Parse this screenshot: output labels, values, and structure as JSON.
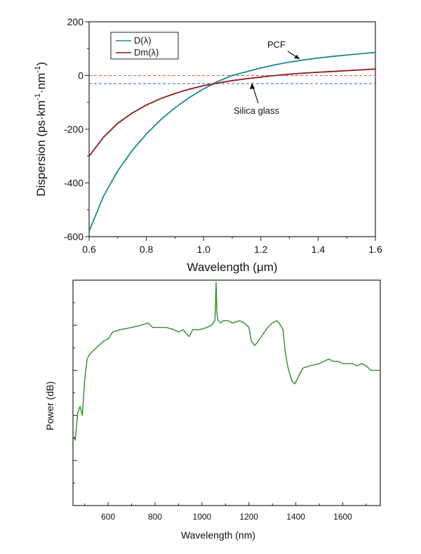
{
  "chart_data": [
    {
      "type": "line",
      "title": "",
      "xlabel": "Wavelength (μm)",
      "ylabel": "Dispersion (ps·km⁻¹·nm⁻¹)",
      "xlim": [
        0.6,
        1.6
      ],
      "ylim": [
        -600,
        200
      ],
      "xticks": [
        0.6,
        0.8,
        1.0,
        1.2,
        1.4,
        1.6
      ],
      "xtick_labels": [
        "0.6",
        "0.8",
        "1.0",
        "1.2",
        "1.4",
        "1.6"
      ],
      "yticks": [
        -600,
        -400,
        -200,
        0,
        200
      ],
      "ytick_labels": [
        "-600",
        "-400",
        "-200",
        "0",
        "200"
      ],
      "grid": false,
      "legend_placement": "top-left",
      "series": [
        {
          "name": "D(λ)",
          "color": "#1a8a8a",
          "x": [
            0.6,
            0.65,
            0.7,
            0.75,
            0.8,
            0.85,
            0.9,
            0.95,
            1.0,
            1.05,
            1.1,
            1.15,
            1.2,
            1.25,
            1.3,
            1.35,
            1.4,
            1.45,
            1.5,
            1.55,
            1.6
          ],
          "y": [
            -580,
            -450,
            -355,
            -280,
            -218,
            -165,
            -120,
            -82,
            -50,
            -22,
            0,
            14,
            28,
            40,
            50,
            58,
            65,
            71,
            76,
            81,
            86
          ]
        },
        {
          "name": "Dm(λ)",
          "color": "#8b1a1a",
          "x": [
            0.6,
            0.65,
            0.7,
            0.75,
            0.8,
            0.85,
            0.9,
            0.95,
            1.0,
            1.05,
            1.1,
            1.15,
            1.2,
            1.25,
            1.3,
            1.35,
            1.4,
            1.45,
            1.5,
            1.55,
            1.6
          ],
          "y": [
            -300,
            -230,
            -178,
            -140,
            -110,
            -86,
            -67,
            -51,
            -38,
            -28,
            -19,
            -12,
            -6,
            0,
            5,
            9,
            12,
            15,
            18,
            21,
            24
          ]
        }
      ],
      "reference_lines": [
        {
          "y": 0,
          "color": "#e05050",
          "style": "dashed"
        },
        {
          "y": -30,
          "color": "#3a4fd0",
          "style": "dashed"
        }
      ],
      "annotations": [
        {
          "text": "PCF",
          "x": 1.28,
          "y": 70,
          "arrow_to": [
            1.36,
            58
          ]
        },
        {
          "text": "Silica glass",
          "x": 1.18,
          "y": -105,
          "arrow_to": [
            1.15,
            -12
          ]
        }
      ]
    },
    {
      "type": "line",
      "title": "",
      "xlabel": "Wavelength (nm)",
      "ylabel": "Power (dB)",
      "xlim": [
        450,
        1760
      ],
      "ylim": [
        0,
        10
      ],
      "xticks": [
        600,
        800,
        1000,
        1200,
        1400,
        1600
      ],
      "xtick_labels": [
        "600",
        "800",
        "1000",
        "1200",
        "1400",
        "1600"
      ],
      "yticks": [
        2,
        4,
        6,
        8
      ],
      "ytick_labels": [],
      "grid": false,
      "series": [
        {
          "color": "#2e8b2e",
          "x": [
            450,
            460,
            470,
            480,
            490,
            500,
            510,
            520,
            540,
            560,
            580,
            600,
            620,
            650,
            700,
            740,
            770,
            790,
            820,
            850,
            880,
            900,
            920,
            935,
            945,
            960,
            990,
            1020,
            1040,
            1055,
            1060,
            1063,
            1066,
            1070,
            1080,
            1090,
            1110,
            1130,
            1160,
            1180,
            1200,
            1210,
            1225,
            1240,
            1260,
            1280,
            1300,
            1320,
            1335,
            1345,
            1355,
            1365,
            1375,
            1385,
            1395,
            1410,
            1430,
            1460,
            1500,
            1520,
            1540,
            1560,
            1580,
            1600,
            1620,
            1640,
            1660,
            1680,
            1700,
            1720,
            1740,
            1760
          ],
          "y": [
            3.1,
            2.9,
            4.1,
            4.4,
            4.0,
            5.6,
            6.5,
            6.7,
            6.9,
            7.1,
            7.3,
            7.4,
            7.7,
            7.8,
            7.9,
            8.0,
            8.1,
            7.9,
            7.9,
            7.9,
            7.8,
            7.7,
            7.8,
            7.6,
            7.5,
            7.8,
            7.8,
            7.9,
            8.0,
            8.2,
            9.9,
            8.6,
            8.3,
            8.2,
            8.1,
            8.2,
            8.2,
            8.1,
            8.2,
            8.1,
            7.9,
            7.3,
            7.1,
            7.3,
            7.6,
            7.9,
            8.1,
            8.2,
            8.0,
            7.8,
            6.8,
            6.2,
            5.8,
            5.5,
            5.4,
            5.7,
            6.1,
            6.2,
            6.3,
            6.4,
            6.5,
            6.4,
            6.4,
            6.3,
            6.3,
            6.3,
            6.2,
            6.3,
            6.2,
            6.0,
            6.0,
            6.0
          ]
        }
      ]
    }
  ],
  "legend": {
    "d_label": "D(λ)",
    "dm_label": "Dm(λ)"
  },
  "annotations": {
    "pcf": "PCF",
    "silica": "Silica glass"
  },
  "axis_titles": {
    "top_x": "Wavelength (μm)",
    "top_y_main": "Dispersion (ps·km",
    "top_y_sup1": "-1",
    "top_y_mid": "·nm",
    "top_y_sup2": "-1",
    "top_y_end": ")",
    "bottom_x": "Wavelength (nm)",
    "bottom_y": "Power (dB)"
  },
  "colors": {
    "d_line": "#1a8a8a",
    "dm_line": "#8b1a1a",
    "ref_red": "#e05050",
    "ref_blue": "#3a4fd0",
    "spectrum": "#2e8b2e"
  }
}
